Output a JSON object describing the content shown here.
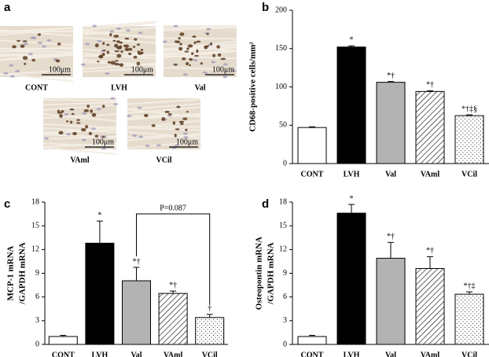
{
  "panel_a": {
    "label": "a",
    "images": [
      {
        "caption": "CONT",
        "scale_bar": "100μm"
      },
      {
        "caption": "LVH",
        "scale_bar": "100μm"
      },
      {
        "caption": "Val",
        "scale_bar": "100μm"
      },
      {
        "caption": "VAml",
        "scale_bar": "100μm"
      },
      {
        "caption": "VCil",
        "scale_bar": "100μm"
      }
    ]
  },
  "chart_data": [
    {
      "type": "bar",
      "label": "b",
      "ylabel": [
        "CD68-positive cells/mm²"
      ],
      "categories": [
        "CONT",
        "LVH",
        "Val",
        "VAml",
        "VCil"
      ],
      "values": [
        47,
        152,
        106,
        94,
        62.5
      ],
      "errors": [
        1,
        1.5,
        1,
        1,
        1
      ],
      "annotations": [
        null,
        "*",
        "*†",
        "*†",
        "*†‡§"
      ],
      "colors": [
        "#ffffff",
        "#000000",
        "#b3b3b3",
        "#ffffff",
        "#ffffff"
      ],
      "patterns": [
        null,
        null,
        null,
        "diagonal",
        "dots"
      ],
      "ylim": [
        0,
        200
      ],
      "yticks": [
        0,
        50,
        100,
        150,
        200
      ]
    },
    {
      "type": "bar",
      "label": "c",
      "ylabel": [
        "MCP-1 mRNA",
        "/GAPDH mRNA"
      ],
      "categories": [
        "CONT",
        "LVH",
        "Val",
        "VAml",
        "VCil"
      ],
      "values": [
        1.0,
        12.8,
        8.05,
        6.45,
        3.4
      ],
      "errors": [
        0.15,
        2.8,
        1.7,
        0.3,
        0.4
      ],
      "annotations": [
        null,
        "*",
        "*†",
        "*†",
        "†"
      ],
      "bracket_label": "P=0.087",
      "colors": [
        "#ffffff",
        "#000000",
        "#b3b3b3",
        "#ffffff",
        "#ffffff"
      ],
      "patterns": [
        null,
        null,
        null,
        "diagonal",
        "dots"
      ],
      "ylim": [
        0,
        18
      ],
      "yticks": [
        0,
        3,
        6,
        9,
        12,
        15,
        18
      ]
    },
    {
      "type": "bar",
      "label": "d",
      "ylabel": [
        "Osteopontin mRNA",
        "/GAPDH mRNA"
      ],
      "categories": [
        "CONT",
        "LVH",
        "Val",
        "VAml",
        "VCil"
      ],
      "values": [
        1.0,
        16.6,
        10.9,
        9.6,
        6.35
      ],
      "errors": [
        0.15,
        1.1,
        2.0,
        1.5,
        0.3
      ],
      "annotations": [
        null,
        "*",
        "*†",
        "*†",
        "*†‡"
      ],
      "colors": [
        "#ffffff",
        "#000000",
        "#b3b3b3",
        "#ffffff",
        "#ffffff"
      ],
      "patterns": [
        null,
        null,
        null,
        "diagonal",
        "dots"
      ],
      "ylim": [
        0,
        18
      ],
      "yticks": [
        0,
        3,
        6,
        9,
        12,
        15,
        18
      ]
    }
  ]
}
